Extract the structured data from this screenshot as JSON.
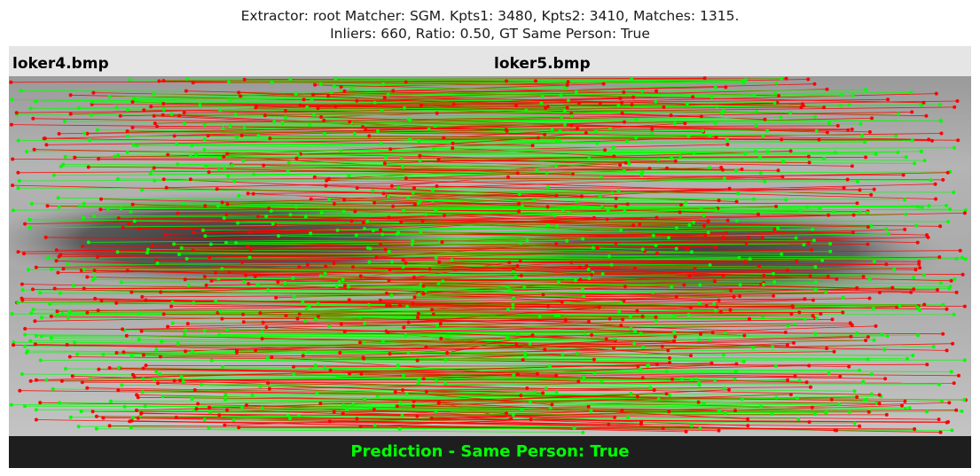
{
  "figure": {
    "title_line1": "Extractor:  root Matcher: SGM. Kpts1: 3480, Kpts2: 3410, Matches: 1315.",
    "title_line2": "Inliers: 660, Ratio: 0.50, GT Same Person: True"
  },
  "images": {
    "left_filename": "loker4.bmp",
    "right_filename": "loker5.bmp"
  },
  "footer": {
    "prediction": "Prediction - Same Person: True"
  },
  "colors": {
    "inlier": "#00ff00",
    "outlier": "#ff0000",
    "header_band": "#e5e5e5",
    "footer_band": "#1e1e1e"
  },
  "matches": {
    "total": 1315,
    "inliers": 660
  }
}
